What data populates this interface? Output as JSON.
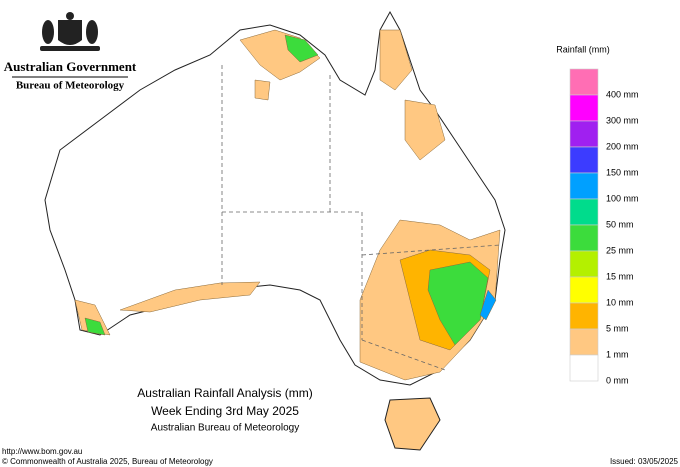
{
  "header": {
    "government": "Australian Government",
    "agency": "Bureau of Meteorology"
  },
  "legend": {
    "title": "Rainfall (mm)",
    "items": [
      {
        "label": "400 mm",
        "color": "#ff6eb4"
      },
      {
        "label": "300 mm",
        "color": "#ff00ff"
      },
      {
        "label": "200 mm",
        "color": "#a020f0"
      },
      {
        "label": "150 mm",
        "color": "#3c3cff"
      },
      {
        "label": "100 mm",
        "color": "#00a0ff"
      },
      {
        "label": "50 mm",
        "color": "#00dc8c"
      },
      {
        "label": "25 mm",
        "color": "#3cdc3c"
      },
      {
        "label": "15 mm",
        "color": "#b4f000"
      },
      {
        "label": "10 mm",
        "color": "#ffff00"
      },
      {
        "label": "5 mm",
        "color": "#ffb400"
      },
      {
        "label": "1 mm",
        "color": "#ffc882"
      },
      {
        "label": "0 mm",
        "color": "#ffffff"
      }
    ]
  },
  "titles": [
    "Australian Rainfall Analysis (mm)",
    "Week Ending 3rd May 2025",
    "Australian Bureau of Meteorology"
  ],
  "footer": {
    "url": "http://www.bom.gov.au",
    "copyright": "© Commonwealth of Australia 2025, Bureau of Meteorology",
    "issued": "Issued: 03/05/2025"
  }
}
